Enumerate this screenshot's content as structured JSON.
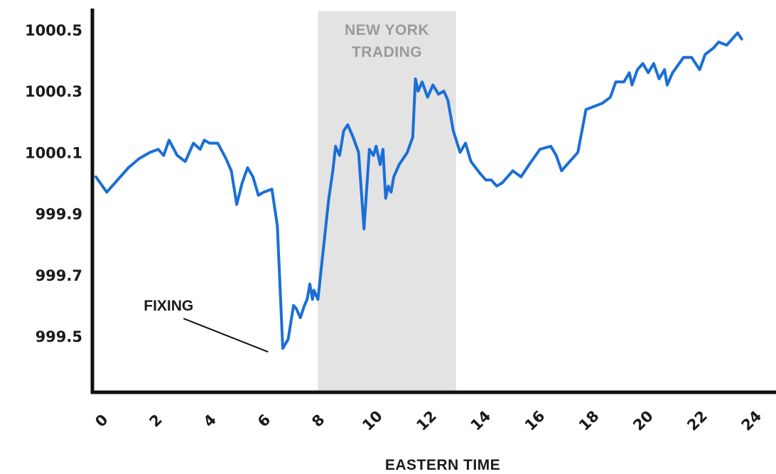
{
  "chart_data": {
    "type": "line",
    "title": "",
    "xlabel": "EASTERN TIME",
    "ylabel": "",
    "xlim": [
      0,
      24.7
    ],
    "ylim": [
      999.32,
      1000.58
    ],
    "x_ticks": [
      0,
      2,
      4,
      6,
      8,
      10,
      12,
      14,
      16,
      18,
      20,
      22,
      24
    ],
    "x_tick_labels": [
      "0",
      "2",
      "4",
      "6",
      "8",
      "10",
      "12",
      "14",
      "16",
      "18",
      "20",
      "22",
      "24"
    ],
    "y_ticks": [
      999.5,
      999.7,
      999.9,
      1000.1,
      1000.3,
      1000.5
    ],
    "y_tick_labels": [
      "999.5",
      "999.7",
      "999.9",
      "1000.1",
      "1000.3",
      "1000.5"
    ],
    "grid": false,
    "legend": "none",
    "colors": {
      "line": "#1a6fd6",
      "region": "#e3e3e3",
      "region_text": "#9a9a9a",
      "axis": "#111111"
    },
    "shaded_region": {
      "x_start": 8.2,
      "x_end": 13.3,
      "label_lines": [
        "NEW YORK",
        "TRADING"
      ]
    },
    "annotation": {
      "text": "FIXING",
      "x": 6.7,
      "y": 999.46
    },
    "series": [
      {
        "x": [
          0,
          0.4,
          0.8,
          1.2,
          1.6,
          2.0,
          2.3,
          2.5,
          2.7,
          3.0,
          3.3,
          3.6,
          3.85,
          4.0,
          4.2,
          4.5,
          4.8,
          5.0,
          5.2,
          5.4,
          5.6,
          5.8,
          6.0,
          6.2,
          6.5,
          6.7,
          6.9,
          7.1,
          7.3,
          7.4,
          7.55,
          7.7,
          7.8,
          7.9,
          8.0,
          8.05,
          8.2,
          8.6,
          8.75,
          8.85,
          9.0,
          9.15,
          9.3,
          9.5,
          9.7,
          9.9,
          10.1,
          10.25,
          10.35,
          10.5,
          10.6,
          10.7,
          10.8,
          10.9,
          11.0,
          11.2,
          11.5,
          11.7,
          11.8,
          11.9,
          12.05,
          12.25,
          12.45,
          12.65,
          12.85,
          13.0,
          13.2,
          13.45,
          13.65,
          13.85,
          14.2,
          14.4,
          14.6,
          14.8,
          15.0,
          15.4,
          15.7,
          16.0,
          16.4,
          16.8,
          17.0,
          17.2,
          17.4,
          17.8,
          18.1,
          18.7,
          19.0,
          19.2,
          19.5,
          19.7,
          19.8,
          20.0,
          20.2,
          20.4,
          20.6,
          20.8,
          21.0,
          21.1,
          21.3,
          21.7,
          22.0,
          22.3,
          22.5,
          22.8,
          23.0,
          23.3,
          23.5,
          23.7,
          23.85
        ],
        "y": [
          1000.02,
          999.97,
          1000.01,
          1000.05,
          1000.08,
          1000.1,
          1000.11,
          1000.09,
          1000.14,
          1000.09,
          1000.07,
          1000.13,
          1000.11,
          1000.14,
          1000.13,
          1000.13,
          1000.08,
          1000.04,
          999.93,
          1000.0,
          1000.05,
          1000.02,
          999.96,
          999.97,
          999.98,
          999.86,
          999.46,
          999.49,
          999.6,
          999.59,
          999.56,
          999.6,
          999.62,
          999.67,
          999.62,
          999.65,
          999.62,
          999.95,
          1000.04,
          1000.12,
          1000.09,
          1000.17,
          1000.19,
          1000.15,
          1000.1,
          999.85,
          1000.11,
          1000.09,
          1000.12,
          1000.06,
          1000.11,
          999.95,
          999.99,
          999.97,
          1000.02,
          1000.06,
          1000.1,
          1000.15,
          1000.34,
          1000.3,
          1000.33,
          1000.28,
          1000.32,
          1000.29,
          1000.3,
          1000.27,
          1000.17,
          1000.1,
          1000.13,
          1000.07,
          1000.03,
          1000.01,
          1000.01,
          999.99,
          1000.0,
          1000.04,
          1000.02,
          1000.06,
          1000.11,
          1000.12,
          1000.09,
          1000.04,
          1000.06,
          1000.1,
          1000.24,
          1000.26,
          1000.28,
          1000.33,
          1000.33,
          1000.36,
          1000.32,
          1000.37,
          1000.39,
          1000.36,
          1000.39,
          1000.34,
          1000.37,
          1000.32,
          1000.36,
          1000.41,
          1000.41,
          1000.37,
          1000.42,
          1000.44,
          1000.46,
          1000.45,
          1000.47,
          1000.49,
          1000.47
        ]
      }
    ]
  }
}
